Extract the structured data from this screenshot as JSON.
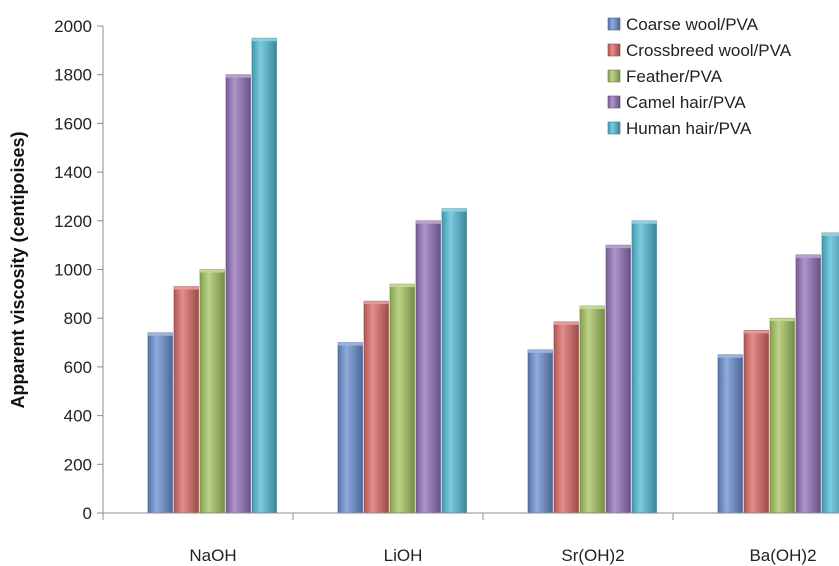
{
  "chart_data": {
    "type": "bar",
    "title": "",
    "xlabel": "",
    "ylabel": "Apparent viscosity (centipoises)",
    "ylim": [
      0,
      2000
    ],
    "yticks": [
      0,
      200,
      400,
      600,
      800,
      1000,
      1200,
      1400,
      1600,
      1800,
      2000
    ],
    "grid": false,
    "legend_position": "top-right",
    "categories": [
      "NaOH",
      "LiOH",
      "Sr(OH)2",
      "Ba(OH)2"
    ],
    "series": [
      {
        "name": "Coarse wool/PVA",
        "color": "#6a8fd0",
        "values": [
          740,
          700,
          670,
          650
        ]
      },
      {
        "name": "Crossbreed wool/PVA",
        "color": "#d96a66",
        "values": [
          930,
          870,
          785,
          750
        ]
      },
      {
        "name": "Feather/PVA",
        "color": "#a5c460",
        "values": [
          1000,
          940,
          850,
          800
        ]
      },
      {
        "name": "Camel hair/PVA",
        "color": "#9272b7",
        "values": [
          1800,
          1200,
          1100,
          1060
        ]
      },
      {
        "name": "Human hair/PVA",
        "color": "#52bad4",
        "values": [
          1950,
          1250,
          1200,
          1150
        ]
      }
    ]
  }
}
